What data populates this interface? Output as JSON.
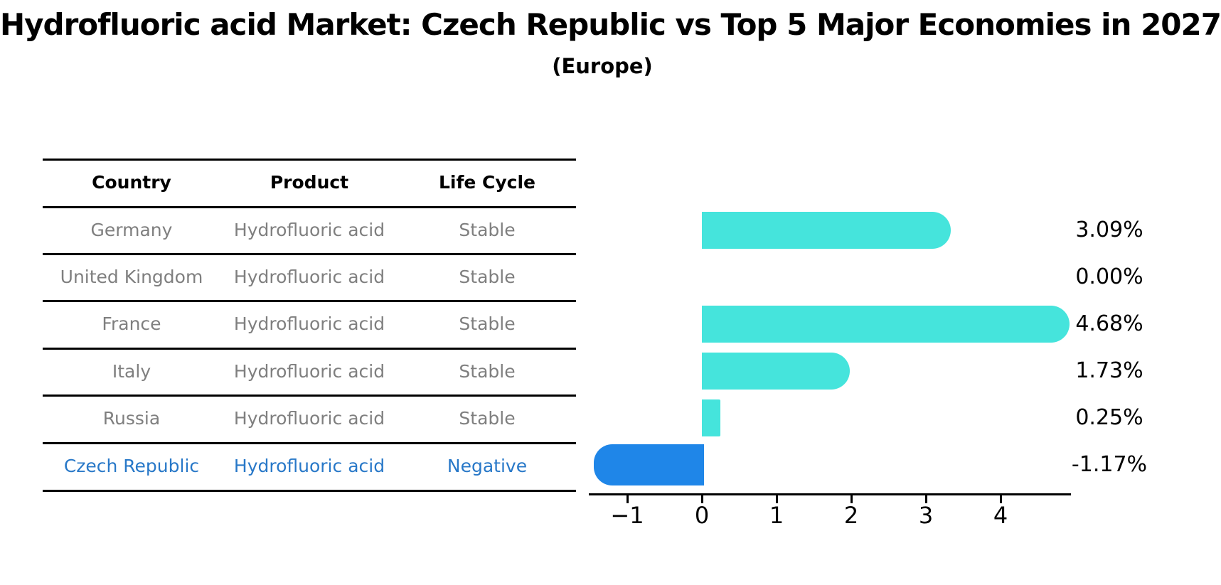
{
  "title": "Hydrofluoric acid Market: Czech Republic vs Top 5 Major Economies in 2027",
  "subtitle": "(Europe)",
  "table": {
    "headers": [
      "Country",
      "Product",
      "Life Cycle"
    ],
    "rows": [
      {
        "country": "Germany",
        "product": "Hydrofluoric acid",
        "life_cycle": "Stable",
        "highlight": false
      },
      {
        "country": "United Kingdom",
        "product": "Hydrofluoric acid",
        "life_cycle": "Stable",
        "highlight": false
      },
      {
        "country": "France",
        "product": "Hydrofluoric acid",
        "life_cycle": "Stable",
        "highlight": false
      },
      {
        "country": "Italy",
        "product": "Hydrofluoric acid",
        "life_cycle": "Stable",
        "highlight": false
      },
      {
        "country": "Russia",
        "product": "Hydrofluoric acid",
        "life_cycle": "Stable",
        "highlight": false
      },
      {
        "country": "Czech Republic",
        "product": "Hydrofluoric acid",
        "life_cycle": "Negative",
        "highlight": true
      }
    ]
  },
  "chart_data": {
    "type": "bar",
    "orientation": "horizontal",
    "title": "Hydrofluoric acid Market: Czech Republic vs Top 5 Major Economies in 2027 (Europe)",
    "categories": [
      "Germany",
      "United Kingdom",
      "France",
      "Italy",
      "Russia",
      "Czech Republic"
    ],
    "values": [
      3.09,
      0.0,
      4.68,
      1.73,
      0.25,
      -1.17
    ],
    "value_labels": [
      "3.09%",
      "0.00%",
      "4.68%",
      "1.73%",
      "0.25%",
      "-1.17%"
    ],
    "xticks": [
      -1,
      0,
      1,
      2,
      3,
      4
    ],
    "xtick_labels": [
      "−1",
      "0",
      "1",
      "2",
      "3",
      "4"
    ],
    "xlim": [
      -1.5,
      4.95
    ],
    "grid": false,
    "legend": "none",
    "bar_color": "#45e4dc",
    "highlight_color": "#1f86e8",
    "highlight_index": 5
  },
  "colors": {
    "bar_cyan": "#45e4dc",
    "bar_blue": "#1f86e8",
    "highlight_text_blue": "#2878c8",
    "table_text_gray": "#7f7f7f",
    "axis_black": "#000000",
    "background": "#ffffff"
  }
}
